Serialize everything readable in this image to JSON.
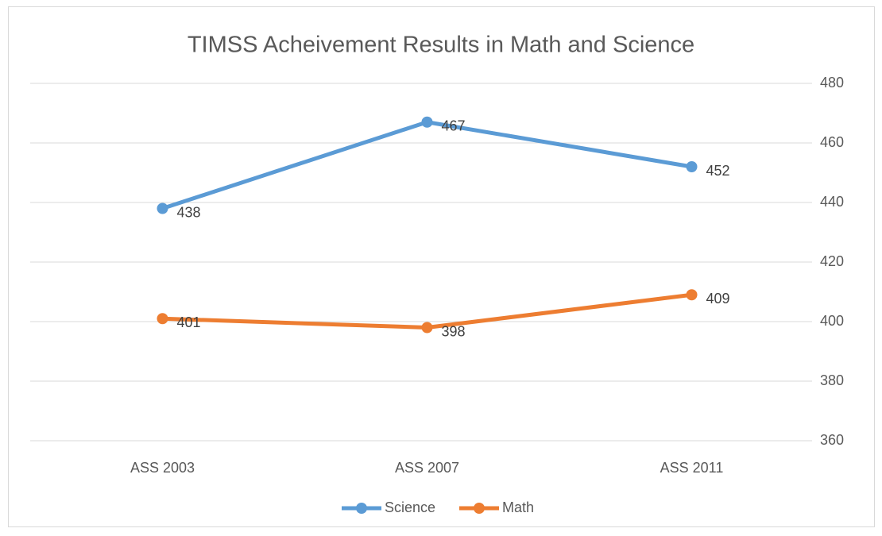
{
  "chart_data": {
    "type": "line",
    "title": "TIMSS Acheivement Results in Math and Science",
    "categories": [
      "ASS 2003",
      "ASS 2007",
      "ASS 2011"
    ],
    "series": [
      {
        "name": "Science",
        "color": "#5b9bd5",
        "values": [
          438,
          467,
          452
        ]
      },
      {
        "name": "Math",
        "color": "#ed7d31",
        "values": [
          401,
          398,
          409
        ]
      }
    ],
    "ylim": [
      360,
      480
    ],
    "yticks": [
      360,
      380,
      400,
      420,
      440,
      460,
      480
    ],
    "grid": true,
    "y_axis_side": "right",
    "legend": "bottom"
  }
}
